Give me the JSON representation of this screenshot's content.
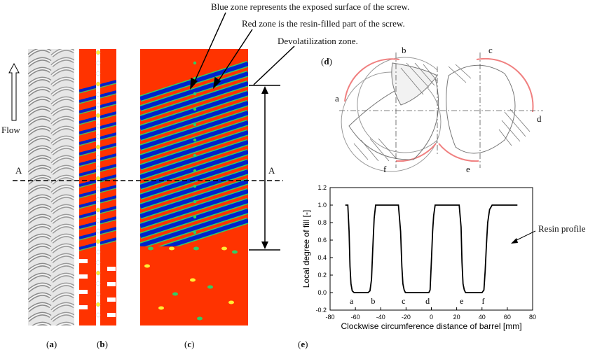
{
  "annotations": {
    "blue_zone": "Blue zone represents the exposed surface of the screw.",
    "red_zone": "Red zone is the resin-filled part of the screw.",
    "devol_zone": "Devolatilization zone.",
    "flow": "Flow",
    "section_left": "A",
    "section_right": "A",
    "resin_profile": "Resin profile"
  },
  "panel_labels": {
    "a": "a",
    "b": "b",
    "c": "c",
    "d": "d",
    "e": "e"
  },
  "cross_section_points": [
    "a",
    "b",
    "c",
    "d",
    "e",
    "f"
  ],
  "colors": {
    "red_zone": "#ff3300",
    "blue_zone": "#0022cc",
    "green_zone": "#33cc66",
    "yellow_zone": "#ffee33",
    "screw_gray": "#bdbdbd",
    "barrel_highlight": "#f08080"
  },
  "chart_data": {
    "type": "line",
    "xlabel": "Clockwise circumference distance of barrel [mm]",
    "ylabel": "Local degree of fill [-]",
    "xlim": [
      -80,
      80
    ],
    "ylim": [
      -0.2,
      1.2
    ],
    "xticks": [
      -80,
      -60,
      -40,
      -20,
      0,
      20,
      40,
      60,
      80
    ],
    "yticks": [
      -0.2,
      0.0,
      0.2,
      0.4,
      0.6,
      0.8,
      1.0,
      1.2
    ],
    "series": [
      {
        "values_x": [
          -68,
          -66,
          -65,
          -64.3,
          -63.5,
          -62.5,
          -61,
          -50,
          -48.5,
          -47.3,
          -46.3,
          -45.2,
          -44,
          -28,
          -26,
          -24.3,
          -23.3,
          -22.5,
          -21.5,
          -20.5,
          -2,
          -1,
          0,
          1,
          1.8,
          3,
          5,
          22,
          23.5,
          24.2,
          25,
          26,
          27,
          29,
          40,
          41.5,
          42.5,
          43.5,
          44.5,
          46,
          48,
          68
        ],
        "values_y": [
          1.0,
          1.0,
          0.7,
          0.3,
          0.1,
          0.02,
          0.0,
          0.0,
          0.02,
          0.15,
          0.5,
          0.85,
          1.0,
          1.0,
          1.0,
          0.7,
          0.3,
          0.1,
          0.03,
          0.0,
          0.0,
          0.03,
          0.35,
          0.7,
          0.88,
          1.0,
          1.0,
          1.0,
          0.75,
          0.35,
          0.1,
          0.03,
          0.0,
          0.0,
          0.0,
          0.03,
          0.25,
          0.55,
          0.8,
          0.95,
          1.0,
          1.0
        ]
      }
    ],
    "point_labels": [
      {
        "text": "a",
        "x": -63
      },
      {
        "text": "b",
        "x": -46
      },
      {
        "text": "c",
        "x": -22
      },
      {
        "text": "d",
        "x": -3
      },
      {
        "text": "e",
        "x": 24
      },
      {
        "text": "f",
        "x": 41
      }
    ]
  }
}
